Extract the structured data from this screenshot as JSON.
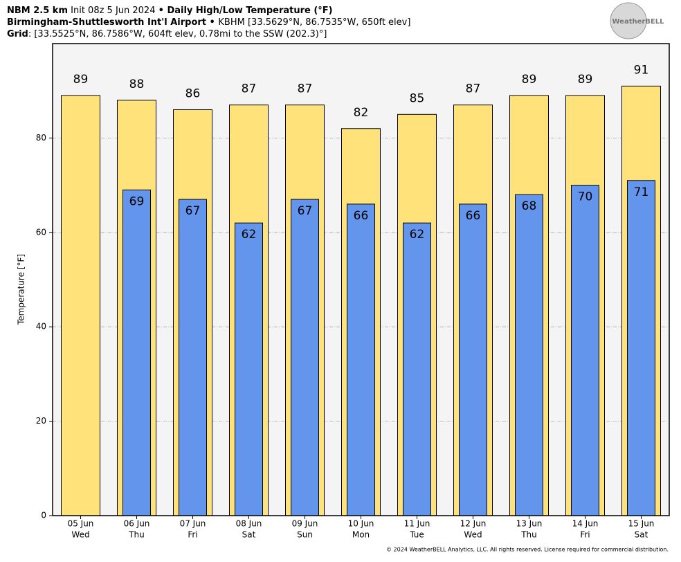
{
  "header": {
    "lines": [
      [
        {
          "text": "NBM 2.5 km",
          "bold": true
        },
        {
          "text": " Init 08z 5 Jun 2024 ",
          "bold": false
        },
        {
          "text": "•",
          "bold": true
        },
        {
          "text": " Daily High/Low Temperature (°F)",
          "bold": true
        }
      ],
      [
        {
          "text": "Birmingham-Shuttlesworth Int'l Airport",
          "bold": true
        },
        {
          "text": " • ",
          "bold": true
        },
        {
          "text": "KBHM [33.5629°N, 86.7535°W, 650ft elev]",
          "bold": false
        }
      ],
      [
        {
          "text": "Grid",
          "bold": true
        },
        {
          "text": ": [33.5525°N, 86.7586°W, 604ft elev, 0.78mi to the SSW (202.3)°]",
          "bold": false
        }
      ]
    ],
    "logo": "WeatherBELL"
  },
  "chart_data": {
    "type": "bar",
    "categories": [
      "05 Jun",
      "06 Jun",
      "07 Jun",
      "08 Jun",
      "09 Jun",
      "10 Jun",
      "11 Jun",
      "12 Jun",
      "13 Jun",
      "14 Jun",
      "15 Jun"
    ],
    "category_sublabels": [
      "Wed",
      "Thu",
      "Fri",
      "Sat",
      "Sun",
      "Mon",
      "Tue",
      "Wed",
      "Thu",
      "Fri",
      "Sat"
    ],
    "series": [
      {
        "name": "High",
        "color": "#ffe27a",
        "values": [
          89,
          88,
          86,
          87,
          87,
          82,
          85,
          87,
          89,
          89,
          91
        ]
      },
      {
        "name": "Low",
        "color": "#6495ed",
        "values": [
          null,
          69,
          67,
          62,
          67,
          66,
          62,
          66,
          68,
          70,
          71
        ]
      }
    ],
    "ylabel": "Temperature [°F]",
    "ylim": [
      0,
      100
    ],
    "yticks": [
      0,
      20,
      40,
      60,
      80
    ],
    "grid": true
  },
  "footer": "© 2024 WeatherBELL Analytics, LLC. All rights reserved. License required for commercial distribution."
}
